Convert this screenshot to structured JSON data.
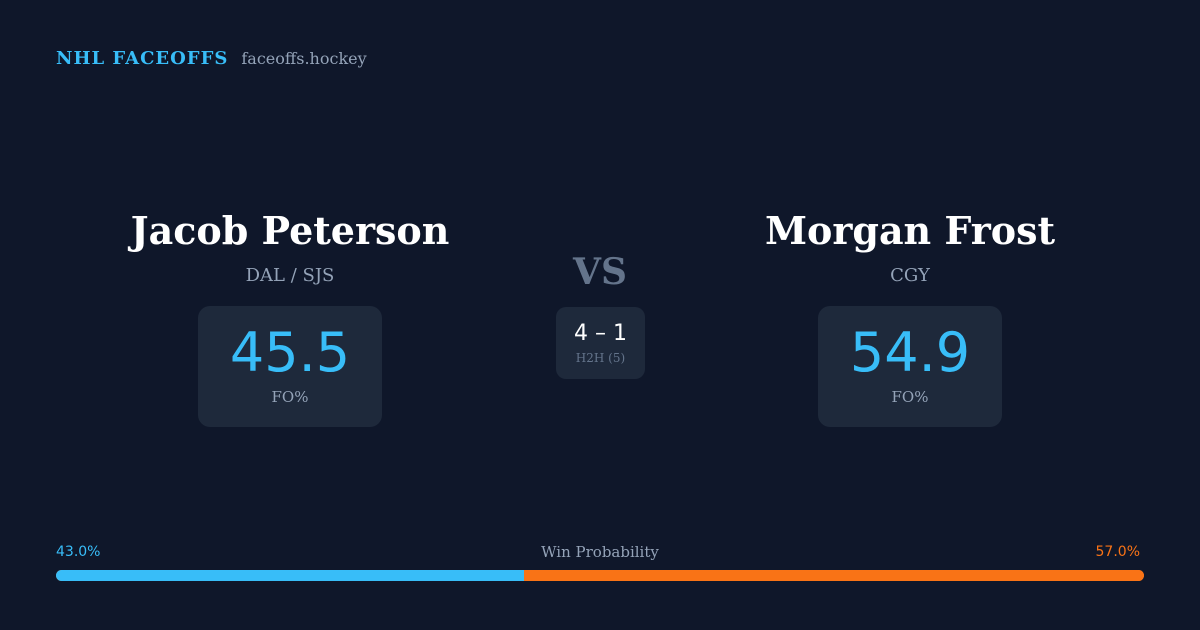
{
  "brand": {
    "name": "NHL FACEOFFS",
    "domain": "faceoffs.hockey"
  },
  "player_left": {
    "name": "Jacob Peterson",
    "team": "DAL / SJS",
    "fo_value": "45.5",
    "fo_label": "FO%"
  },
  "player_right": {
    "name": "Morgan Frost",
    "team": "CGY",
    "fo_value": "54.9",
    "fo_label": "FO%"
  },
  "versus": {
    "label": "VS",
    "h2h_score": "4 – 1",
    "h2h_label": "H2H (5)"
  },
  "win_probability": {
    "title": "Win Probability",
    "left_label": "43.0%",
    "right_label": "57.0%",
    "left_fraction": 0.43,
    "right_fraction": 0.57
  },
  "colors": {
    "background": "#0f172a",
    "card": "#1e293b",
    "accent_blue": "#38bdf8",
    "accent_orange": "#f97316",
    "muted_text": "#94a3b8"
  }
}
